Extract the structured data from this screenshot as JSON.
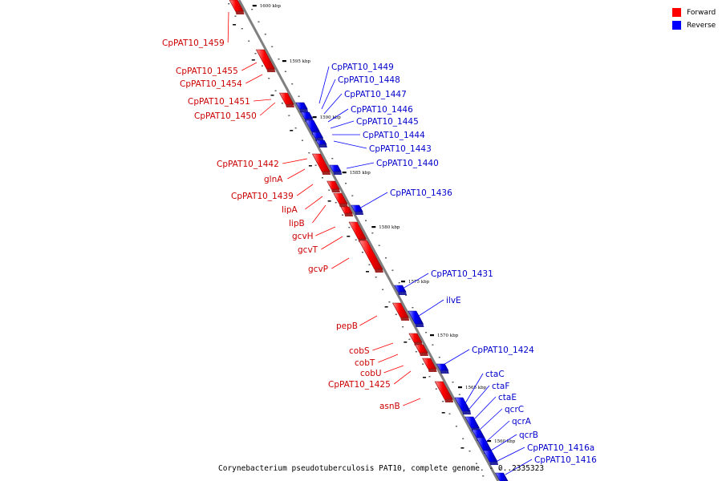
{
  "caption": "Corynebacterium pseudotuberculosis PAT10, complete genome. - 0..2335323",
  "legend": [
    {
      "label": "Forward",
      "color": "#ff0000"
    },
    {
      "label": "Reverse",
      "color": "#0000ff"
    }
  ],
  "colors": {
    "forward": "#ff0000",
    "reverse": "#0000ff",
    "axis": "#808080"
  },
  "ticks": [
    "1600 kbp",
    "1595 kbp",
    "1590 kbp",
    "1585 kbp",
    "1580 kbp",
    "1575 kbp",
    "1570 kbp",
    "1565 kbp",
    "1560 kbp"
  ],
  "forward_genes": [
    "CpPAT10_1459",
    "CpPAT10_1455",
    "CpPAT10_1454",
    "CpPAT10_1451",
    "CpPAT10_1450",
    "CpPAT10_1442",
    "glnA",
    "CpPAT10_1439",
    "lipA",
    "lipB",
    "gcvH",
    "gcvT",
    "gcvP",
    "pepB",
    "cobS",
    "cobT",
    "cobU",
    "CpPAT10_1425",
    "asnB"
  ],
  "reverse_genes": [
    "CpPAT10_1449",
    "CpPAT10_1448",
    "CpPAT10_1447",
    "CpPAT10_1446",
    "CpPAT10_1445",
    "CpPAT10_1444",
    "CpPAT10_1443",
    "CpPAT10_1440",
    "CpPAT10_1436",
    "CpPAT10_1431",
    "ilvE",
    "CpPAT10_1424",
    "ctaC",
    "ctaF",
    "ctaE",
    "qcrC",
    "qcrA",
    "qcrB",
    "CpPAT10_1416a",
    "CpPAT10_1416"
  ]
}
